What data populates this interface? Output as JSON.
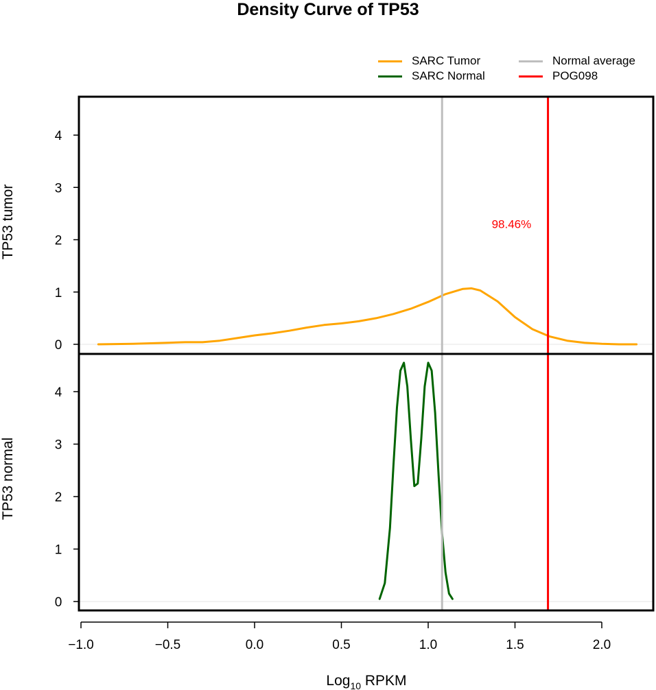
{
  "chart_data": {
    "type": "line",
    "title": "Density Curve of  TP53",
    "xlabel": "Log10 RPKM",
    "xlabel_base": "Log",
    "xlabel_sub": "10",
    "xlabel_rest": " RPKM",
    "xlim": [
      -1.0,
      2.3
    ],
    "x_ticks": [
      -1.0,
      -0.5,
      0.0,
      0.5,
      1.0,
      1.5,
      2.0
    ],
    "x_tick_labels": [
      "−1.0",
      "−0.5",
      "0.0",
      "0.5",
      "1.0",
      "1.5",
      "2.0"
    ],
    "legend": {
      "placement": "top-right",
      "entries": [
        {
          "label": "SARC  Tumor",
          "color": "#FFA500"
        },
        {
          "label": "SARC  Normal",
          "color": "#006400"
        },
        {
          "label": "Normal  average",
          "color": "#BEBEBE"
        },
        {
          "label": "POG098",
          "color": "#FF0000"
        }
      ]
    },
    "vlines": [
      {
        "name": "Normal  average",
        "x": 1.08,
        "color": "#BEBEBE"
      },
      {
        "name": "POG098",
        "x": 1.69,
        "color": "#FF0000"
      }
    ],
    "annotation": {
      "text": "98.46%",
      "x": 1.48,
      "y": 2.3,
      "color": "#FF0000"
    },
    "panels": [
      {
        "ylabel": "TP53  tumor",
        "ylim": [
          0,
          4.6
        ],
        "y_ticks": [
          0,
          1,
          2,
          3,
          4
        ],
        "series": [
          {
            "name": "SARC  Tumor",
            "color": "#FFA500",
            "x": [
              -0.9,
              -0.7,
              -0.5,
              -0.4,
              -0.3,
              -0.2,
              -0.1,
              0.0,
              0.1,
              0.2,
              0.3,
              0.4,
              0.5,
              0.6,
              0.7,
              0.8,
              0.9,
              1.0,
              1.1,
              1.2,
              1.25,
              1.3,
              1.4,
              1.5,
              1.6,
              1.7,
              1.8,
              1.9,
              2.0,
              2.1,
              2.2
            ],
            "y": [
              0.0,
              0.01,
              0.03,
              0.04,
              0.04,
              0.07,
              0.12,
              0.17,
              0.21,
              0.26,
              0.32,
              0.37,
              0.4,
              0.44,
              0.5,
              0.58,
              0.68,
              0.81,
              0.96,
              1.06,
              1.07,
              1.03,
              0.82,
              0.52,
              0.29,
              0.15,
              0.07,
              0.03,
              0.01,
              0.0,
              0.0
            ]
          }
        ]
      },
      {
        "ylabel": "TP53  normal",
        "ylim": [
          0,
          4.6
        ],
        "y_ticks": [
          0,
          1,
          2,
          3,
          4
        ],
        "series": [
          {
            "name": "SARC  Normal",
            "color": "#006400",
            "x": [
              0.72,
              0.75,
              0.78,
              0.8,
              0.82,
              0.84,
              0.86,
              0.88,
              0.9,
              0.92,
              0.94,
              0.96,
              0.98,
              1.0,
              1.02,
              1.04,
              1.06,
              1.08,
              1.1,
              1.12,
              1.14
            ],
            "y": [
              0.05,
              0.35,
              1.4,
              2.6,
              3.7,
              4.4,
              4.55,
              4.1,
              3.1,
              2.2,
              2.25,
              3.1,
              4.1,
              4.55,
              4.4,
              3.6,
              2.4,
              1.3,
              0.55,
              0.15,
              0.05
            ]
          }
        ]
      }
    ]
  }
}
